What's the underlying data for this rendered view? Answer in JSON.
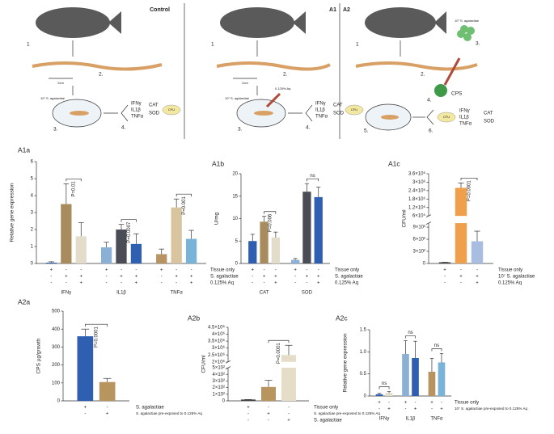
{
  "diagram": {
    "headers": [
      "Control",
      "A1",
      "A2"
    ],
    "panels": [
      {
        "steps": [
          "1",
          "2.",
          "3.",
          "4."
        ],
        "scale": "2cm",
        "inoculum": "10⁷ S. agalactiae",
        "markers": [
          "IFNγ",
          "IL1β",
          "TNFα"
        ],
        "enzymes": [
          "CAT",
          "SOD"
        ],
        "count": "CFU"
      },
      {
        "steps": [
          "1",
          "2.",
          "3.",
          "4."
        ],
        "scale": "2cm",
        "inoculum": "10⁷ S. agalactiae",
        "treatment": "0.125% Aq",
        "markers": [
          "IFNγ",
          "IL1β",
          "TNFα"
        ],
        "enzymes": [
          "CAT",
          "SOD"
        ],
        "count": "CFU"
      },
      {
        "steps": [
          "1",
          "2.",
          "3.",
          "4.",
          "5.",
          "6."
        ],
        "inoculum": "10⁷ S. agalactiae",
        "agent": "CPS",
        "markers": [
          "IFNγ",
          "IL1β",
          "TNFα"
        ],
        "enzymes": [
          "CAT",
          "SOD"
        ],
        "count": "CFU"
      }
    ]
  },
  "chart_data": [
    {
      "type": "bar",
      "title": "A1a",
      "ylabel": "Relative gene expression",
      "ylim": [
        0,
        6
      ],
      "yticks": [
        0,
        1,
        2,
        3,
        4,
        5,
        6
      ],
      "groups": [
        {
          "name": "IFNγ",
          "values": [
            0.05,
            3.5,
            1.6
          ],
          "errors": [
            0.05,
            1.2,
            0.8
          ],
          "colors": [
            "#2f5fb0",
            "#a98c5e",
            "#e3dccb"
          ],
          "annotation": "P=0.01"
        },
        {
          "name": "IL1β",
          "values": [
            0.95,
            2.0,
            1.15
          ],
          "errors": [
            0.3,
            0.3,
            0.6
          ],
          "colors": [
            "#8bb0d6",
            "#4a4d55",
            "#2f5fb0"
          ],
          "annotation": "P=0.0007"
        },
        {
          "name": "TNFα",
          "values": [
            0.55,
            3.3,
            1.45
          ],
          "errors": [
            0.3,
            0.5,
            0.5
          ],
          "colors": [
            "#b89462",
            "#d8c5a0",
            "#79b3d8"
          ],
          "annotation": "P=0.001"
        }
      ],
      "conditions": [
        {
          "label": "Tissue only",
          "signs": [
            "+",
            "-",
            "-",
            "+",
            "-",
            "-",
            "+",
            "-",
            "-"
          ]
        },
        {
          "label": "S. agalactiae",
          "signs": [
            "-",
            "+",
            "+",
            "-",
            "+",
            "+",
            "-",
            "+",
            "+"
          ]
        },
        {
          "label": "0.125% Aq",
          "signs": [
            "-",
            "-",
            "+",
            "-",
            "-",
            "+",
            "-",
            "-",
            "+"
          ]
        }
      ]
    },
    {
      "type": "bar",
      "title": "A1b",
      "ylabel": "U/mg",
      "ylim": [
        0,
        20
      ],
      "yticks": [
        0,
        5,
        10,
        15,
        20
      ],
      "groups": [
        {
          "name": "CAT",
          "values": [
            5,
            9.3,
            5.8
          ],
          "errors": [
            1.5,
            1.2,
            1.2
          ],
          "colors": [
            "#2f5fb0",
            "#a98c5e",
            "#e3dccb"
          ],
          "annotation": "P=0.006"
        },
        {
          "name": "SOD",
          "values": [
            0.8,
            16,
            14.8
          ],
          "errors": [
            0.3,
            1.8,
            2.2
          ],
          "colors": [
            "#8bb0d6",
            "#4a4d55",
            "#2f5fb0"
          ],
          "annotation": "ns"
        }
      ],
      "conditions": [
        {
          "label": "Tissue only",
          "signs": [
            "+",
            "-",
            "-",
            "+",
            "-",
            "-"
          ]
        },
        {
          "label": "S. agalactiae",
          "signs": [
            "-",
            "+",
            "+",
            "-",
            "+",
            "+"
          ]
        },
        {
          "label": "0.125% Aq",
          "signs": [
            "-",
            "-",
            "+",
            "-",
            "-",
            "+"
          ]
        }
      ]
    },
    {
      "type": "bar",
      "title": "A1c",
      "ylabel": "CFU/ml",
      "ylim": [
        0,
        3600000
      ],
      "axis_break": [
        1000,
        600000
      ],
      "yticks": [
        0,
        {
          "value": 300,
          "label": "3×10²"
        },
        {
          "value": 600,
          "label": "6×10²"
        },
        {
          "value": 900,
          "label": "9×10²"
        },
        {
          "value": 600000,
          "label": "6×10⁵"
        },
        {
          "value": 1200000,
          "label": "1.2×10⁶"
        },
        {
          "value": 1800000,
          "label": "1.8×10⁶"
        },
        {
          "value": 2400000,
          "label": "2.4×10⁶"
        },
        {
          "value": 3000000,
          "label": "3×10⁶"
        },
        {
          "value": 3600000,
          "label": "3.6×10⁶"
        }
      ],
      "groups": [
        {
          "values": [
            30,
            2600000,
            550
          ],
          "errors": [
            0,
            350000,
            250
          ],
          "colors": [
            "#444444",
            "#f0a04b",
            "#a9bde0"
          ],
          "annotation": "P=0.0001"
        }
      ],
      "conditions": [
        {
          "label": "Tissue only",
          "signs": [
            "+",
            "-",
            "-"
          ]
        },
        {
          "label": "10⁷ S. agalactiae",
          "signs": [
            "-",
            "+",
            "+"
          ]
        },
        {
          "label": "0.125% Aq",
          "signs": [
            "-",
            "-",
            "+"
          ]
        }
      ]
    },
    {
      "type": "bar",
      "title": "A2a",
      "ylabel": "CPS µg/growth",
      "ylim": [
        0,
        500
      ],
      "yticks": [
        0,
        100,
        200,
        300,
        400,
        500
      ],
      "groups": [
        {
          "values": [
            360,
            105
          ],
          "errors": [
            40,
            20
          ],
          "colors": [
            "#2f5fb0",
            "#b8955f"
          ],
          "annotation": "P=0.0001"
        }
      ],
      "conditions": [
        {
          "label": "S. agalactiae",
          "signs": [
            "+",
            "-"
          ]
        },
        {
          "label": "S. agalactiae pre-exposed to 0.125% Aq",
          "signs": [
            "-",
            "+"
          ]
        }
      ]
    },
    {
      "type": "bar",
      "title": "A2b",
      "ylabel": "CFU/ml",
      "ylim": [
        0,
        4500000
      ],
      "axis_break": [
        500,
        2000000
      ],
      "yticks": [
        0,
        {
          "value": 100,
          "label": "1×10²"
        },
        {
          "value": 200,
          "label": "2×10²"
        },
        {
          "value": 300,
          "label": "3×10²"
        },
        {
          "value": 400,
          "label": "4×10²"
        },
        {
          "value": 500,
          "label": "5×10²"
        },
        {
          "value": 2000000,
          "label": "2×10⁶"
        },
        {
          "value": 2500000,
          "label": "2.5×10⁶"
        },
        {
          "value": 3000000,
          "label": "3×10⁶"
        },
        {
          "value": 3500000,
          "label": "3.5×10⁶"
        },
        {
          "value": 4000000,
          "label": "4×10⁶"
        },
        {
          "value": 4500000,
          "label": "4.5×10⁶"
        }
      ],
      "groups": [
        {
          "values": [
            20,
            210,
            2500000
          ],
          "errors": [
            0,
            100,
            700000
          ],
          "colors": [
            "#444444",
            "#b8955f",
            "#e6ddc8"
          ],
          "annotation": "P=0.0001"
        }
      ],
      "conditions": [
        {
          "label": "Tissue only",
          "signs": [
            "+",
            "-",
            "-"
          ]
        },
        {
          "label": "S. agalactiae pre-exposed to 0.125% Aq",
          "signs": [
            "-",
            "+",
            "-"
          ]
        },
        {
          "label": "S. agalactiae",
          "signs": [
            "-",
            "-",
            "+"
          ]
        }
      ]
    },
    {
      "type": "bar",
      "title": "A2c",
      "ylabel": "Relative gene expression",
      "ylim": [
        0,
        1.5
      ],
      "yticks": [
        0,
        0.5,
        {
          "value": 1,
          "label": "1.0"
        },
        1.5
      ],
      "groups": [
        {
          "name": "IFNγ",
          "values": [
            0.04,
            0.07
          ],
          "errors": [
            0.02,
            0.03
          ],
          "colors": [
            "#2f5fb0",
            "#e3dccb"
          ],
          "annotation": "ns"
        },
        {
          "name": "IL1β",
          "values": [
            0.95,
            0.86
          ],
          "errors": [
            0.3,
            0.38
          ],
          "colors": [
            "#8bb0d6",
            "#2f5fb0"
          ],
          "annotation": "ns"
        },
        {
          "name": "TNFα",
          "values": [
            0.55,
            0.76
          ],
          "errors": [
            0.3,
            0.2
          ],
          "colors": [
            "#b89462",
            "#79b3d8"
          ],
          "annotation": "ns"
        }
      ],
      "conditions": [
        {
          "label": "Tissue only",
          "signs": [
            "+",
            "-",
            "+",
            "-",
            "+",
            "-"
          ]
        },
        {
          "label": "10⁷ S. agalactiae pre-exposed to 0.125% Aq",
          "signs": [
            "-",
            "+",
            "-",
            "+",
            "-",
            "+"
          ]
        }
      ]
    }
  ]
}
